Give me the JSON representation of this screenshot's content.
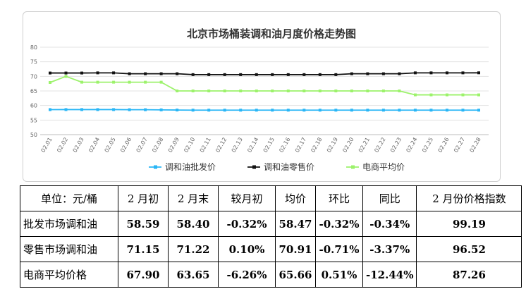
{
  "chart_data": {
    "type": "line",
    "title": "北京市场桶装调和油月度价格走势图",
    "categories": [
      "02.01",
      "02.02",
      "02.03",
      "02.04",
      "02.05",
      "02.06",
      "02.07",
      "02.08",
      "02.09",
      "02.10",
      "02.11",
      "02.12",
      "02.13",
      "02.14",
      "02.15",
      "02.16",
      "02.17",
      "02.18",
      "02.19",
      "02.20",
      "02.21",
      "02.22",
      "02.23",
      "02.24",
      "02.25",
      "02.26",
      "02.27",
      "02.28"
    ],
    "ylim": [
      50,
      80
    ],
    "yticks": [
      50,
      55,
      60,
      65,
      70,
      75,
      80
    ],
    "grid": true,
    "legend": "bottom",
    "series": [
      {
        "name": "调和油批发价",
        "color": "#29b6f6",
        "values": [
          58.59,
          58.6,
          58.6,
          58.6,
          58.6,
          58.55,
          58.55,
          58.5,
          58.45,
          58.4,
          58.4,
          58.4,
          58.4,
          58.4,
          58.4,
          58.4,
          58.4,
          58.4,
          58.4,
          58.4,
          58.4,
          58.4,
          58.4,
          58.4,
          58.4,
          58.4,
          58.4,
          58.4
        ]
      },
      {
        "name": "调和油零售价",
        "color": "#111111",
        "values": [
          71.15,
          71.15,
          71.15,
          71.2,
          71.2,
          70.9,
          70.9,
          70.9,
          70.9,
          70.6,
          70.6,
          70.6,
          70.6,
          70.6,
          70.6,
          70.6,
          70.6,
          70.6,
          70.6,
          70.9,
          70.9,
          70.9,
          70.9,
          71.2,
          71.2,
          71.2,
          71.2,
          71.22
        ]
      },
      {
        "name": "电商平均价",
        "color": "#9cf26b",
        "values": [
          67.9,
          70.0,
          68.0,
          68.0,
          68.0,
          68.0,
          68.0,
          68.0,
          65.0,
          65.0,
          65.0,
          65.0,
          65.0,
          65.0,
          65.0,
          65.0,
          65.0,
          65.0,
          65.0,
          65.0,
          65.0,
          65.0,
          65.0,
          63.65,
          63.65,
          63.65,
          63.65,
          63.65
        ]
      }
    ]
  },
  "table": {
    "headers": [
      "单位：元/桶",
      "2 月初",
      "2 月末",
      "较月初",
      "均价",
      "环比",
      "同比",
      "2 月份价格指数"
    ],
    "rows": [
      [
        "批发市场调和油",
        "58.59",
        "58.40",
        "-0.32%",
        "58.47",
        "-0.32%",
        "-0.34%",
        "99.19"
      ],
      [
        "零售市场调和油",
        "71.15",
        "71.22",
        "0.10%",
        "70.91",
        "-0.71%",
        "-3.37%",
        "96.52"
      ],
      [
        "电商平均价格",
        "67.90",
        "63.65",
        "-6.26%",
        "65.66",
        "0.51%",
        "-12.44%",
        "87.26"
      ]
    ]
  }
}
